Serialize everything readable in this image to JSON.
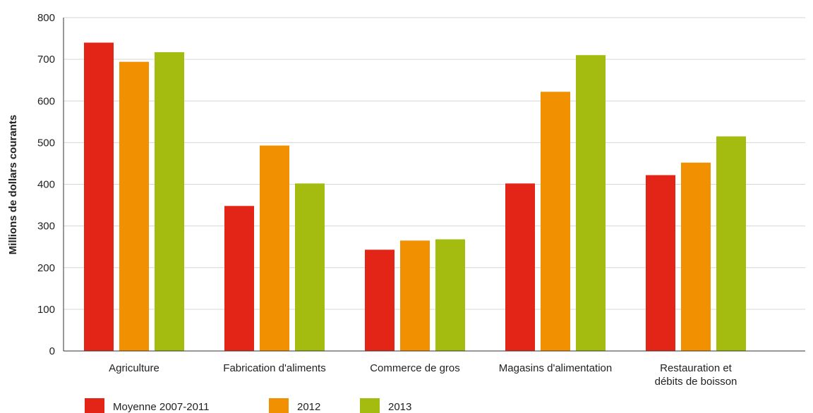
{
  "chart_data": {
    "type": "bar",
    "title": "",
    "xlabel": "",
    "ylabel": "Millions de dollars courants",
    "ylim": [
      0,
      800
    ],
    "yticks": [
      0,
      100,
      200,
      300,
      400,
      500,
      600,
      700,
      800
    ],
    "grid": true,
    "legend_position": "bottom-left",
    "categories": [
      [
        "Agriculture"
      ],
      [
        "Fabrication d'aliments"
      ],
      [
        "Commerce de gros"
      ],
      [
        "Magasins d'alimentation"
      ],
      [
        "Restauration et",
        "débits de boisson"
      ]
    ],
    "series": [
      {
        "name": "Moyenne 2007-2011",
        "color": "#e32518",
        "values": [
          740,
          348,
          243,
          402,
          422
        ]
      },
      {
        "name": "2012",
        "color": "#f19102",
        "values": [
          694,
          493,
          265,
          622,
          452
        ]
      },
      {
        "name": "2013",
        "color": "#a4bc0f",
        "values": [
          717,
          402,
          268,
          710,
          515
        ]
      }
    ]
  }
}
